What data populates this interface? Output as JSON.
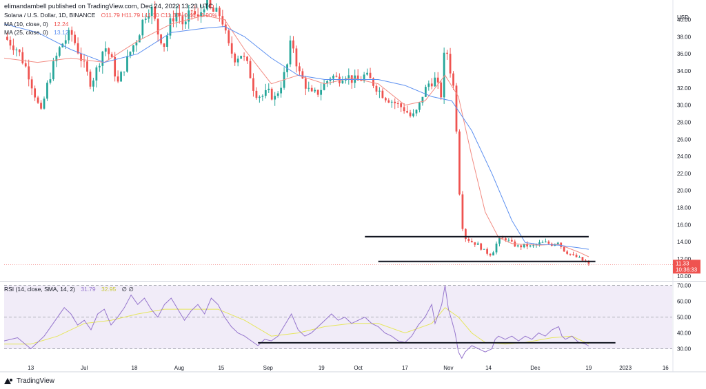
{
  "header": {
    "author_line": "elimandambell published on TradingView.com, Dec 24, 2022 13:23 UTC"
  },
  "main_legend": {
    "symbol": "Solana / U.S. Dollar, 1D, BINANCE",
    "ohlc": "O11.79  H11.79  L11.10  C11.33  −0.46  −3.90%",
    "ma1_label": "MA (10, close, 0)",
    "ma1_value": "12.24",
    "ma2_label": "MA (25, close, 0)",
    "ma2_value": "13.12"
  },
  "rsi_legend": {
    "label": "RSI (14, close, SMA, 14, 2)",
    "rsi_value": "31.79",
    "ma_value": "32.95",
    "extra": "∅  ∅"
  },
  "price_axis": {
    "currency": "USD",
    "ticks": [
      "40.00",
      "38.00",
      "36.00",
      "34.00",
      "32.00",
      "30.00",
      "28.00",
      "26.00",
      "24.00",
      "22.00",
      "20.00",
      "18.00",
      "16.00",
      "14.00",
      "12.00",
      "10.00"
    ],
    "last_price": "11.33",
    "countdown": "10:36:33"
  },
  "rsi_axis": {
    "ticks": [
      "70.00",
      "60.00",
      "50.00",
      "40.00",
      "30.00"
    ]
  },
  "time_axis": {
    "labels": [
      "13",
      "Jul",
      "18",
      "Aug",
      "15",
      "Sep",
      "19",
      "Oct",
      "17",
      "Nov",
      "14",
      "Dec",
      "19",
      "2023",
      "16"
    ]
  },
  "branding": {
    "name": "TradingView"
  },
  "colors": {
    "up": "#26a69a",
    "down": "#ef5350",
    "ma10": "#f28b82",
    "ma25": "#5b8ff0",
    "rsi": "#9575cd",
    "rsi_ma": "#e6e65c",
    "band": "#ede7f6",
    "level": "#131722"
  },
  "chart_data": {
    "type": "candlestick",
    "price_range": [
      9.5,
      41.5
    ],
    "rsi_range": [
      22,
      72
    ],
    "support_levels": [
      {
        "price": 14.6,
        "from": 0.54,
        "to": 0.875
      },
      {
        "price": 11.7,
        "from": 0.56,
        "to": 0.885
      }
    ],
    "rsi_trend_line": {
      "value": 33.8,
      "from": 0.38,
      "to": 0.915
    },
    "price_path": [
      [
        0.0,
        38.0
      ],
      [
        0.02,
        36.5
      ],
      [
        0.035,
        34.0
      ],
      [
        0.045,
        31.5
      ],
      [
        0.055,
        29.0
      ],
      [
        0.065,
        32.5
      ],
      [
        0.075,
        35.0
      ],
      [
        0.085,
        37.0
      ],
      [
        0.1,
        38.5
      ],
      [
        0.11,
        36.5
      ],
      [
        0.12,
        34.5
      ],
      [
        0.13,
        32.5
      ],
      [
        0.14,
        34.5
      ],
      [
        0.15,
        37.0
      ],
      [
        0.16,
        35.5
      ],
      [
        0.17,
        32.5
      ],
      [
        0.18,
        34.5
      ],
      [
        0.19,
        36.5
      ],
      [
        0.2,
        38.0
      ],
      [
        0.21,
        40.5
      ],
      [
        0.22,
        41.5
      ],
      [
        0.23,
        38.5
      ],
      [
        0.24,
        37.0
      ],
      [
        0.25,
        40.0
      ],
      [
        0.26,
        41.0
      ],
      [
        0.27,
        39.0
      ],
      [
        0.28,
        41.2
      ],
      [
        0.29,
        40.0
      ],
      [
        0.3,
        42.0
      ],
      [
        0.31,
        41.0
      ],
      [
        0.325,
        40.5
      ],
      [
        0.335,
        37.0
      ],
      [
        0.345,
        35.5
      ],
      [
        0.355,
        36.0
      ],
      [
        0.365,
        34.5
      ],
      [
        0.375,
        31.5
      ],
      [
        0.385,
        31.0
      ],
      [
        0.395,
        31.5
      ],
      [
        0.405,
        30.8
      ],
      [
        0.415,
        32.5
      ],
      [
        0.425,
        35.0
      ],
      [
        0.43,
        38.0
      ],
      [
        0.44,
        34.0
      ],
      [
        0.45,
        32.5
      ],
      [
        0.46,
        31.2
      ],
      [
        0.47,
        31.5
      ],
      [
        0.48,
        32.5
      ],
      [
        0.49,
        33.5
      ],
      [
        0.5,
        33.0
      ],
      [
        0.51,
        33.7
      ],
      [
        0.52,
        33.0
      ],
      [
        0.53,
        32.8
      ],
      [
        0.54,
        33.5
      ],
      [
        0.55,
        32.8
      ],
      [
        0.56,
        31.8
      ],
      [
        0.57,
        31.0
      ],
      [
        0.58,
        30.5
      ],
      [
        0.59,
        30.0
      ],
      [
        0.6,
        29.5
      ],
      [
        0.61,
        28.5
      ],
      [
        0.62,
        29.5
      ],
      [
        0.625,
        31.0
      ],
      [
        0.635,
        32.5
      ],
      [
        0.645,
        33.0
      ],
      [
        0.655,
        31.0
      ],
      [
        0.66,
        37.5
      ],
      [
        0.668,
        34.0
      ],
      [
        0.672,
        32.5
      ],
      [
        0.676,
        29.0
      ],
      [
        0.68,
        22.0
      ],
      [
        0.684,
        16.5
      ],
      [
        0.69,
        14.5
      ],
      [
        0.7,
        14.0
      ],
      [
        0.71,
        13.6
      ],
      [
        0.72,
        12.8
      ],
      [
        0.73,
        12.5
      ],
      [
        0.735,
        13.5
      ],
      [
        0.74,
        14.2
      ],
      [
        0.75,
        14.4
      ],
      [
        0.76,
        13.8
      ],
      [
        0.77,
        13.4
      ],
      [
        0.78,
        13.6
      ],
      [
        0.79,
        13.4
      ],
      [
        0.8,
        13.8
      ],
      [
        0.81,
        13.9
      ],
      [
        0.82,
        13.7
      ],
      [
        0.83,
        14.1
      ],
      [
        0.835,
        13.2
      ],
      [
        0.84,
        12.9
      ],
      [
        0.85,
        12.4
      ],
      [
        0.86,
        12.1
      ],
      [
        0.87,
        11.6
      ],
      [
        0.875,
        11.33
      ]
    ],
    "ma10_path": [
      [
        0.0,
        35.5
      ],
      [
        0.05,
        35.0
      ],
      [
        0.1,
        35.5
      ],
      [
        0.15,
        35.0
      ],
      [
        0.2,
        37.5
      ],
      [
        0.25,
        39.5
      ],
      [
        0.3,
        40.5
      ],
      [
        0.33,
        40.0
      ],
      [
        0.36,
        36.5
      ],
      [
        0.4,
        32.5
      ],
      [
        0.44,
        33.5
      ],
      [
        0.48,
        32.5
      ],
      [
        0.52,
        33.2
      ],
      [
        0.56,
        32.5
      ],
      [
        0.6,
        30.0
      ],
      [
        0.63,
        30.5
      ],
      [
        0.66,
        33.5
      ],
      [
        0.68,
        31.0
      ],
      [
        0.7,
        24.0
      ],
      [
        0.72,
        17.5
      ],
      [
        0.74,
        14.5
      ],
      [
        0.76,
        13.8
      ],
      [
        0.8,
        13.6
      ],
      [
        0.83,
        13.7
      ],
      [
        0.86,
        12.8
      ],
      [
        0.875,
        12.24
      ]
    ],
    "ma25_path": [
      [
        0.0,
        39.5
      ],
      [
        0.05,
        38.5
      ],
      [
        0.1,
        36.5
      ],
      [
        0.15,
        35.0
      ],
      [
        0.2,
        36.0
      ],
      [
        0.25,
        38.5
      ],
      [
        0.3,
        39.0
      ],
      [
        0.33,
        39.2
      ],
      [
        0.36,
        38.0
      ],
      [
        0.4,
        35.5
      ],
      [
        0.44,
        33.5
      ],
      [
        0.48,
        33.0
      ],
      [
        0.52,
        33.0
      ],
      [
        0.56,
        33.0
      ],
      [
        0.6,
        32.3
      ],
      [
        0.64,
        31.0
      ],
      [
        0.67,
        30.5
      ],
      [
        0.7,
        27.0
      ],
      [
        0.73,
        22.0
      ],
      [
        0.76,
        16.5
      ],
      [
        0.78,
        13.9
      ],
      [
        0.8,
        13.7
      ],
      [
        0.83,
        13.6
      ],
      [
        0.86,
        13.3
      ],
      [
        0.875,
        13.12
      ]
    ],
    "rsi_path": [
      [
        0.0,
        35
      ],
      [
        0.02,
        37
      ],
      [
        0.04,
        30
      ],
      [
        0.05,
        34
      ],
      [
        0.06,
        38
      ],
      [
        0.07,
        44
      ],
      [
        0.08,
        50
      ],
      [
        0.09,
        56
      ],
      [
        0.1,
        52
      ],
      [
        0.11,
        45
      ],
      [
        0.12,
        48
      ],
      [
        0.13,
        42
      ],
      [
        0.14,
        52
      ],
      [
        0.15,
        55
      ],
      [
        0.16,
        45
      ],
      [
        0.17,
        50
      ],
      [
        0.18,
        56
      ],
      [
        0.19,
        64
      ],
      [
        0.2,
        58
      ],
      [
        0.21,
        62
      ],
      [
        0.22,
        55
      ],
      [
        0.23,
        50
      ],
      [
        0.24,
        58
      ],
      [
        0.25,
        62
      ],
      [
        0.26,
        55
      ],
      [
        0.27,
        48
      ],
      [
        0.28,
        54
      ],
      [
        0.29,
        58
      ],
      [
        0.3,
        52
      ],
      [
        0.31,
        62
      ],
      [
        0.32,
        58
      ],
      [
        0.33,
        50
      ],
      [
        0.34,
        44
      ],
      [
        0.35,
        40
      ],
      [
        0.36,
        38
      ],
      [
        0.37,
        35
      ],
      [
        0.38,
        32
      ],
      [
        0.39,
        36
      ],
      [
        0.4,
        35
      ],
      [
        0.41,
        38
      ],
      [
        0.42,
        45
      ],
      [
        0.43,
        52
      ],
      [
        0.44,
        42
      ],
      [
        0.45,
        38
      ],
      [
        0.46,
        40
      ],
      [
        0.47,
        44
      ],
      [
        0.48,
        48
      ],
      [
        0.49,
        52
      ],
      [
        0.5,
        48
      ],
      [
        0.51,
        50
      ],
      [
        0.52,
        46
      ],
      [
        0.53,
        48
      ],
      [
        0.54,
        50
      ],
      [
        0.55,
        46
      ],
      [
        0.56,
        44
      ],
      [
        0.57,
        40
      ],
      [
        0.58,
        38
      ],
      [
        0.59,
        35
      ],
      [
        0.6,
        34
      ],
      [
        0.61,
        38
      ],
      [
        0.62,
        45
      ],
      [
        0.63,
        50
      ],
      [
        0.64,
        58
      ],
      [
        0.645,
        46
      ],
      [
        0.65,
        52
      ],
      [
        0.655,
        58
      ],
      [
        0.66,
        70
      ],
      [
        0.665,
        55
      ],
      [
        0.67,
        48
      ],
      [
        0.675,
        40
      ],
      [
        0.68,
        28
      ],
      [
        0.685,
        24
      ],
      [
        0.69,
        28
      ],
      [
        0.7,
        32
      ],
      [
        0.71,
        30
      ],
      [
        0.72,
        28
      ],
      [
        0.73,
        30
      ],
      [
        0.735,
        36
      ],
      [
        0.74,
        38
      ],
      [
        0.75,
        36
      ],
      [
        0.76,
        38
      ],
      [
        0.77,
        35
      ],
      [
        0.78,
        38
      ],
      [
        0.79,
        36
      ],
      [
        0.8,
        40
      ],
      [
        0.81,
        38
      ],
      [
        0.82,
        42
      ],
      [
        0.83,
        44
      ],
      [
        0.835,
        38
      ],
      [
        0.84,
        36
      ],
      [
        0.85,
        38
      ],
      [
        0.86,
        34
      ],
      [
        0.87,
        33
      ],
      [
        0.875,
        31.8
      ]
    ],
    "rsi_ma_path": [
      [
        0.0,
        33
      ],
      [
        0.04,
        33
      ],
      [
        0.08,
        38
      ],
      [
        0.12,
        46
      ],
      [
        0.16,
        48
      ],
      [
        0.2,
        52
      ],
      [
        0.24,
        55
      ],
      [
        0.28,
        55
      ],
      [
        0.32,
        55
      ],
      [
        0.36,
        48
      ],
      [
        0.4,
        38
      ],
      [
        0.44,
        40
      ],
      [
        0.48,
        44
      ],
      [
        0.52,
        46
      ],
      [
        0.56,
        46
      ],
      [
        0.6,
        40
      ],
      [
        0.64,
        46
      ],
      [
        0.66,
        56
      ],
      [
        0.68,
        50
      ],
      [
        0.7,
        40
      ],
      [
        0.72,
        34
      ],
      [
        0.75,
        33
      ],
      [
        0.78,
        34
      ],
      [
        0.82,
        37
      ],
      [
        0.85,
        38
      ],
      [
        0.875,
        33
      ]
    ]
  }
}
